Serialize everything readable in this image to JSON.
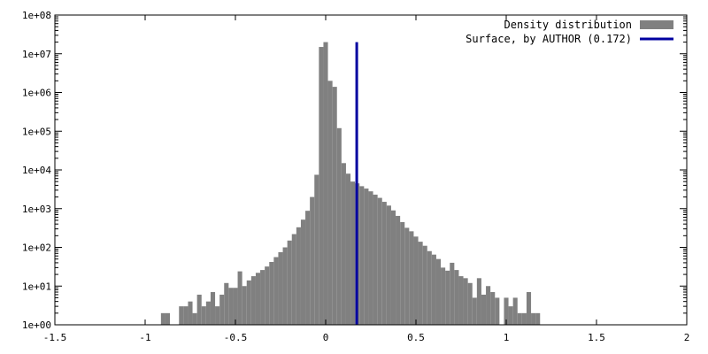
{
  "chart_data": {
    "type": "bar",
    "title": "",
    "xlabel": "",
    "ylabel": "",
    "y_scale": "log",
    "xlim": [
      -1.5,
      2
    ],
    "ylim": [
      1,
      100000000
    ],
    "x_ticks": [
      -1.5,
      -1,
      -0.5,
      0,
      0.5,
      1,
      1.5,
      2
    ],
    "x_tick_labels": [
      "-1.5",
      "-1",
      "-0.5",
      "0",
      "0.5",
      "1",
      "1.5",
      "2"
    ],
    "y_ticks": [
      1,
      10,
      100,
      1000,
      10000,
      100000,
      1000000,
      10000000,
      100000000
    ],
    "y_tick_labels": [
      "1e+00",
      "1e+01",
      "1e+02",
      "1e+03",
      "1e+04",
      "1e+05",
      "1e+06",
      "1e+07",
      "1e+08"
    ],
    "grid": false,
    "legend_position": "top-right",
    "bin_width": 0.025,
    "series": [
      {
        "name": "Density distribution",
        "color": "#808080",
        "kind": "histogram",
        "x": [
          -0.9,
          -0.875,
          -0.825,
          -0.8,
          -0.775,
          -0.75,
          -0.725,
          -0.7,
          -0.675,
          -0.65,
          -0.625,
          -0.6,
          -0.575,
          -0.55,
          -0.525,
          -0.5,
          -0.475,
          -0.45,
          -0.425,
          -0.4,
          -0.375,
          -0.35,
          -0.325,
          -0.3,
          -0.275,
          -0.25,
          -0.225,
          -0.2,
          -0.175,
          -0.15,
          -0.125,
          -0.1,
          -0.075,
          -0.05,
          -0.025,
          0,
          0.025,
          0.05,
          0.075,
          0.1,
          0.125,
          0.15,
          0.175,
          0.2,
          0.225,
          0.25,
          0.275,
          0.3,
          0.325,
          0.35,
          0.375,
          0.4,
          0.425,
          0.45,
          0.475,
          0.5,
          0.525,
          0.55,
          0.575,
          0.6,
          0.625,
          0.65,
          0.675,
          0.7,
          0.725,
          0.75,
          0.775,
          0.8,
          0.825,
          0.85,
          0.875,
          0.9,
          0.925,
          0.95,
          0.975,
          1,
          1.025,
          1.05,
          1.075,
          1.1,
          1.125,
          1.15,
          1.175
        ],
        "values": [
          2,
          2,
          1,
          3,
          3,
          4,
          2,
          6,
          3,
          4,
          7,
          3,
          6,
          12,
          9,
          9,
          24,
          10,
          14,
          18,
          22,
          26,
          32,
          42,
          56,
          75,
          100,
          150,
          220,
          330,
          520,
          880,
          2000,
          7500,
          15000000.0,
          20000000.0,
          2000000.0,
          1400000.0,
          120000.0,
          15000.0,
          8000,
          5000,
          4500,
          3800,
          3300,
          2800,
          2300,
          1900,
          1500,
          1200,
          900,
          650,
          450,
          320,
          260,
          190,
          140,
          110,
          80,
          65,
          50,
          30,
          25,
          40,
          26,
          18,
          16,
          12,
          5,
          16,
          6,
          10,
          7,
          5,
          1,
          5,
          3,
          5,
          2,
          2,
          7,
          2,
          2
        ]
      },
      {
        "name": "Surface, by AUTHOR (0.172)",
        "color": "#0000a0",
        "kind": "vline",
        "x": 0.172
      }
    ]
  }
}
